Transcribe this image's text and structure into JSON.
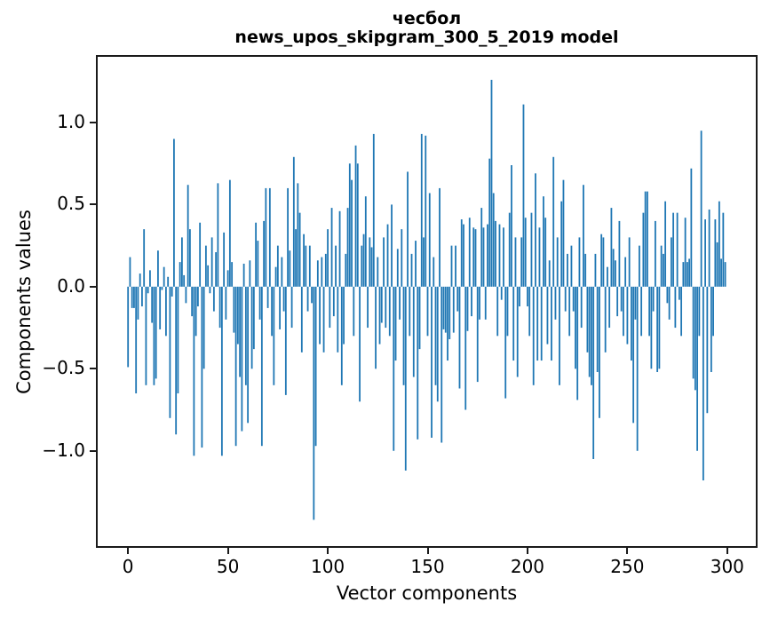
{
  "figure": {
    "title_line1": "чесбол",
    "title_line2": "news_upos_skipgram_300_5_2019 model",
    "xlabel": "Vector components",
    "ylabel": "Components values"
  },
  "chart_data": {
    "type": "bar",
    "title": "чесбол\nnews_upos_skipgram_300_5_2019 model",
    "xlabel": "Vector components",
    "ylabel": "Components values",
    "legend": "none",
    "grid": false,
    "bar_color": "#1f77b4",
    "axis_color": "#1a1a1a",
    "n_components": 300,
    "xlim": [
      -15.2,
      314.3
    ],
    "ylim": [
      -1.58,
      1.4
    ],
    "x_ticks": [
      0,
      50,
      100,
      150,
      200,
      250,
      300
    ],
    "x_tick_labels": [
      "0",
      "50",
      "100",
      "150",
      "200",
      "250",
      "300"
    ],
    "y_ticks": [
      1.0,
      0.5,
      0.0,
      -0.5,
      -1.0
    ],
    "y_tick_labels": [
      "1.0",
      "0.5",
      "0.0",
      "−0.5",
      "−1.0"
    ],
    "bar_width_data_units": 0.8,
    "values": [
      -0.49,
      0.18,
      -0.13,
      -0.13,
      -0.65,
      -0.2,
      0.08,
      -0.12,
      0.35,
      -0.6,
      -0.04,
      0.1,
      -0.22,
      -0.6,
      -0.56,
      0.22,
      -0.26,
      -0.02,
      0.12,
      -0.3,
      0.06,
      -0.8,
      -0.06,
      0.9,
      -0.9,
      -0.65,
      0.15,
      0.3,
      0.07,
      -0.1,
      0.62,
      0.35,
      -0.18,
      -1.03,
      -0.3,
      -0.12,
      0.39,
      -0.98,
      -0.5,
      0.25,
      0.13,
      -0.04,
      0.3,
      -0.15,
      0.21,
      0.63,
      -0.25,
      -1.03,
      0.33,
      -0.2,
      0.1,
      0.65,
      0.15,
      -0.28,
      -0.97,
      -0.35,
      -0.55,
      -0.88,
      0.14,
      -0.6,
      -0.83,
      0.16,
      -0.5,
      -0.38,
      0.39,
      0.28,
      -0.2,
      -0.97,
      0.4,
      0.6,
      -0.13,
      0.6,
      -0.3,
      -0.6,
      0.12,
      0.25,
      -0.26,
      0.18,
      -0.15,
      -0.66,
      0.6,
      0.22,
      -0.25,
      0.79,
      0.35,
      0.63,
      0.45,
      -0.4,
      0.32,
      0.25,
      -0.15,
      0.25,
      -0.1,
      -1.42,
      -0.97,
      0.16,
      -0.35,
      0.18,
      -0.4,
      0.2,
      0.35,
      -0.25,
      0.48,
      -0.18,
      0.25,
      -0.4,
      0.46,
      -0.6,
      -0.35,
      0.2,
      0.48,
      0.75,
      0.65,
      -0.3,
      0.86,
      0.75,
      -0.7,
      0.25,
      0.32,
      0.55,
      -0.25,
      0.3,
      0.24,
      0.93,
      -0.5,
      0.18,
      -0.35,
      -0.22,
      0.3,
      -0.25,
      0.38,
      -0.3,
      0.5,
      -1.0,
      -0.45,
      0.23,
      -0.2,
      0.35,
      -0.6,
      -1.12,
      0.7,
      -0.3,
      0.2,
      -0.55,
      0.28,
      -0.93,
      -0.38,
      0.93,
      0.3,
      0.92,
      -0.3,
      0.57,
      -0.92,
      0.18,
      -0.6,
      -0.7,
      0.6,
      -0.95,
      -0.26,
      -0.28,
      -0.45,
      -0.32,
      0.25,
      -0.28,
      0.25,
      -0.15,
      -0.62,
      0.41,
      0.38,
      -0.75,
      -0.27,
      0.42,
      -0.18,
      0.36,
      0.35,
      -0.58,
      -0.2,
      0.48,
      0.36,
      -0.2,
      0.38,
      0.78,
      1.26,
      0.57,
      0.4,
      -0.3,
      0.38,
      -0.08,
      0.36,
      -0.68,
      -0.3,
      0.45,
      0.74,
      -0.45,
      0.3,
      -0.55,
      -0.12,
      0.3,
      1.11,
      0.42,
      -0.12,
      -0.3,
      0.45,
      -0.6,
      0.69,
      -0.45,
      0.36,
      -0.45,
      0.55,
      0.42,
      -0.35,
      0.16,
      -0.45,
      0.79,
      -0.2,
      0.3,
      -0.6,
      0.52,
      0.65,
      -0.15,
      0.2,
      -0.3,
      0.25,
      -0.15,
      -0.5,
      -0.69,
      0.3,
      -0.25,
      0.62,
      0.2,
      -0.4,
      -0.55,
      -0.6,
      -1.05,
      0.2,
      -0.52,
      -0.8,
      0.32,
      0.3,
      -0.4,
      0.12,
      -0.25,
      0.48,
      0.23,
      0.16,
      -0.18,
      0.4,
      -0.15,
      -0.3,
      0.18,
      -0.35,
      0.3,
      -0.45,
      -0.83,
      -0.2,
      -1.0,
      0.25,
      -0.3,
      0.45,
      0.58,
      0.58,
      -0.3,
      -0.5,
      -0.15,
      0.4,
      -0.52,
      -0.5,
      0.25,
      0.2,
      0.52,
      -0.1,
      -0.2,
      0.3,
      0.45,
      -0.25,
      0.45,
      -0.08,
      -0.3,
      0.15,
      0.42,
      0.15,
      0.17,
      0.72,
      -0.56,
      -0.63,
      -1.0,
      -0.3,
      0.95,
      -1.18,
      0.41,
      -0.77,
      0.47,
      -0.52,
      -0.3,
      0.41,
      0.27,
      0.52,
      0.17,
      0.45,
      0.15
    ]
  }
}
